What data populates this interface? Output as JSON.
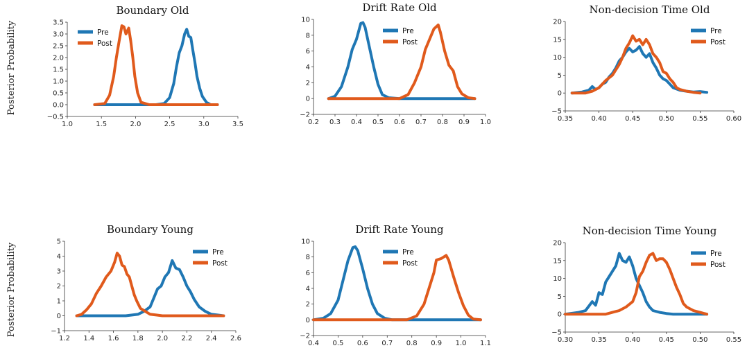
{
  "figure": {
    "ylabel": "Posterior Probability"
  },
  "colors": {
    "pre": "#1f77b4",
    "post": "#e05a1c"
  },
  "chart_data": [
    {
      "type": "line",
      "title": "Boundary Old",
      "xlabel": "",
      "ylabel": "Posterior Probability",
      "xlim": [
        1.0,
        3.5
      ],
      "ylim": [
        -0.5,
        3.5
      ],
      "xticks": [
        1.0,
        1.5,
        2.0,
        2.5,
        3.0,
        3.5
      ],
      "yticks": [
        -0.5,
        0.0,
        0.5,
        1.0,
        1.5,
        2.0,
        2.5,
        3.0,
        3.5
      ],
      "xtick_labels": [
        "1.0",
        "1.5",
        "2.0",
        "2.5",
        "3.0",
        "3.5"
      ],
      "ytick_labels": [
        "−0.5",
        "0.0",
        "0.5",
        "1.0",
        "1.5",
        "2.0",
        "2.5",
        "3.0",
        "3.5"
      ],
      "legend": "upper-left",
      "series": [
        {
          "name": "Pre",
          "color": "#1f77b4",
          "x": [
            1.4,
            2.3,
            2.42,
            2.5,
            2.56,
            2.6,
            2.64,
            2.68,
            2.72,
            2.75,
            2.78,
            2.81,
            2.84,
            2.87,
            2.9,
            2.94,
            2.98,
            3.04,
            3.1,
            3.2
          ],
          "y": [
            0,
            0,
            0.05,
            0.3,
            0.9,
            1.6,
            2.2,
            2.5,
            3.0,
            3.2,
            2.9,
            2.85,
            2.3,
            1.8,
            1.2,
            0.7,
            0.35,
            0.1,
            0,
            0
          ]
        },
        {
          "name": "Post",
          "color": "#e05a1c",
          "x": [
            1.4,
            1.55,
            1.62,
            1.68,
            1.72,
            1.76,
            1.8,
            1.83,
            1.86,
            1.9,
            1.93,
            1.96,
            1.99,
            2.03,
            2.08,
            2.2,
            3.2
          ],
          "y": [
            0,
            0.05,
            0.4,
            1.2,
            2.0,
            2.7,
            3.35,
            3.3,
            3.0,
            3.25,
            2.7,
            2.0,
            1.2,
            0.5,
            0.1,
            0,
            0
          ]
        }
      ]
    },
    {
      "type": "line",
      "title": "Drift Rate Old",
      "xlabel": "",
      "ylabel": "",
      "xlim": [
        0.2,
        1.0
      ],
      "ylim": [
        -2,
        10
      ],
      "xticks": [
        0.2,
        0.3,
        0.4,
        0.5,
        0.6,
        0.7,
        0.8,
        0.9,
        1.0
      ],
      "yticks": [
        -2,
        0,
        2,
        4,
        6,
        8,
        10
      ],
      "xtick_labels": [
        "0.2",
        "0.3",
        "0.4",
        "0.5",
        "0.6",
        "0.7",
        "0.8",
        "0.9",
        "1.0"
      ],
      "ytick_labels": [
        "−2",
        "0",
        "2",
        "4",
        "6",
        "8",
        "10"
      ],
      "legend": "upper-right",
      "series": [
        {
          "name": "Pre",
          "color": "#1f77b4",
          "x": [
            0.27,
            0.3,
            0.33,
            0.36,
            0.38,
            0.4,
            0.42,
            0.43,
            0.44,
            0.46,
            0.48,
            0.5,
            0.52,
            0.55,
            0.6,
            0.95
          ],
          "y": [
            0,
            0.3,
            1.5,
            4.0,
            6.2,
            7.5,
            9.5,
            9.6,
            9.0,
            6.5,
            4.0,
            1.8,
            0.5,
            0.1,
            0,
            0
          ]
        },
        {
          "name": "Post",
          "color": "#e05a1c",
          "x": [
            0.27,
            0.6,
            0.64,
            0.67,
            0.7,
            0.72,
            0.74,
            0.76,
            0.78,
            0.79,
            0.81,
            0.83,
            0.85,
            0.87,
            0.89,
            0.92,
            0.95
          ],
          "y": [
            0,
            0,
            0.5,
            2.0,
            4.0,
            6.2,
            7.5,
            8.8,
            9.3,
            8.4,
            6.0,
            4.2,
            3.5,
            1.5,
            0.6,
            0.1,
            0
          ]
        }
      ]
    },
    {
      "type": "line",
      "title": "Non-decision Time Old",
      "xlabel": "",
      "ylabel": "",
      "xlim": [
        0.35,
        0.6
      ],
      "ylim": [
        -5,
        20
      ],
      "xticks": [
        0.35,
        0.4,
        0.45,
        0.5,
        0.55,
        0.6
      ],
      "yticks": [
        -5,
        0,
        5,
        10,
        15,
        20
      ],
      "xtick_labels": [
        "0.35",
        "0.40",
        "0.45",
        "0.50",
        "0.55",
        "0.60"
      ],
      "ytick_labels": [
        "−5",
        "0",
        "5",
        "10",
        "15",
        "20"
      ],
      "legend": "upper-right",
      "series": [
        {
          "name": "Pre",
          "color": "#1f77b4",
          "x": [
            0.36,
            0.375,
            0.385,
            0.39,
            0.395,
            0.4,
            0.405,
            0.41,
            0.415,
            0.42,
            0.425,
            0.43,
            0.435,
            0.44,
            0.445,
            0.45,
            0.455,
            0.46,
            0.465,
            0.47,
            0.475,
            0.48,
            0.485,
            0.49,
            0.495,
            0.5,
            0.505,
            0.51,
            0.52,
            0.53,
            0.54,
            0.55,
            0.56
          ],
          "y": [
            0,
            0.3,
            0.8,
            1.8,
            1.0,
            1.5,
            2.5,
            3.0,
            4.5,
            5.5,
            7.0,
            9.0,
            10.0,
            11.5,
            12.5,
            11.5,
            12.0,
            13.0,
            11.0,
            10.0,
            11.0,
            8.5,
            7.0,
            5.0,
            4.0,
            3.5,
            2.5,
            1.5,
            0.8,
            0.5,
            0.3,
            0.4,
            0.2
          ]
        },
        {
          "name": "Post",
          "color": "#e05a1c",
          "x": [
            0.36,
            0.38,
            0.39,
            0.4,
            0.41,
            0.42,
            0.425,
            0.43,
            0.435,
            0.44,
            0.445,
            0.45,
            0.455,
            0.46,
            0.465,
            0.47,
            0.475,
            0.48,
            0.485,
            0.49,
            0.495,
            0.5,
            0.505,
            0.51,
            0.515,
            0.52,
            0.53,
            0.54,
            0.55
          ],
          "y": [
            0,
            0,
            0.5,
            1.5,
            3.5,
            5.0,
            6.5,
            8.0,
            10.0,
            12.5,
            14.0,
            16.0,
            14.5,
            15.0,
            13.5,
            15.0,
            13.5,
            11.0,
            10.0,
            8.5,
            6.0,
            5.5,
            4.0,
            3.0,
            1.5,
            1.0,
            0.5,
            0.2,
            0
          ]
        }
      ]
    },
    {
      "type": "line",
      "title": "Boundary Young",
      "xlabel": "",
      "ylabel": "Posterior Probability",
      "xlim": [
        1.2,
        2.6
      ],
      "ylim": [
        -1,
        5
      ],
      "xticks": [
        1.2,
        1.4,
        1.6,
        1.8,
        2.0,
        2.2,
        2.4,
        2.6
      ],
      "yticks": [
        -1,
        0,
        1,
        2,
        3,
        4,
        5
      ],
      "xtick_labels": [
        "1.2",
        "1.4",
        "1.6",
        "1.8",
        "2.0",
        "2.2",
        "2.4",
        "2.6"
      ],
      "ytick_labels": [
        "−1",
        "0",
        "1",
        "2",
        "3",
        "4",
        "5"
      ],
      "legend": "upper-right",
      "series": [
        {
          "name": "Pre",
          "color": "#1f77b4",
          "x": [
            1.3,
            1.7,
            1.8,
            1.85,
            1.9,
            1.93,
            1.96,
            1.99,
            2.02,
            2.05,
            2.08,
            2.11,
            2.14,
            2.17,
            2.2,
            2.23,
            2.26,
            2.3,
            2.35,
            2.4,
            2.45,
            2.5
          ],
          "y": [
            0,
            0,
            0.1,
            0.3,
            0.6,
            1.2,
            1.8,
            2.0,
            2.6,
            2.9,
            3.7,
            3.2,
            3.1,
            2.6,
            2.0,
            1.6,
            1.1,
            0.6,
            0.3,
            0.1,
            0.05,
            0
          ]
        },
        {
          "name": "Post",
          "color": "#e05a1c",
          "x": [
            1.3,
            1.34,
            1.38,
            1.42,
            1.46,
            1.5,
            1.54,
            1.58,
            1.61,
            1.63,
            1.65,
            1.67,
            1.69,
            1.71,
            1.73,
            1.75,
            1.77,
            1.79,
            1.82,
            1.86,
            1.9,
            1.95,
            2.0,
            2.5
          ],
          "y": [
            0,
            0.1,
            0.4,
            0.8,
            1.5,
            2.0,
            2.6,
            3.0,
            3.6,
            4.2,
            4.0,
            3.4,
            3.3,
            2.8,
            2.6,
            2.0,
            1.4,
            1.0,
            0.5,
            0.3,
            0.1,
            0.05,
            0,
            0
          ]
        }
      ]
    },
    {
      "type": "line",
      "title": "Drift Rate Young",
      "xlabel": "",
      "ylabel": "",
      "xlim": [
        0.4,
        1.1
      ],
      "ylim": [
        -2,
        10
      ],
      "xticks": [
        0.4,
        0.5,
        0.6,
        0.7,
        0.8,
        0.9,
        1.0,
        1.1
      ],
      "yticks": [
        -2,
        0,
        2,
        4,
        6,
        8,
        10
      ],
      "xtick_labels": [
        "0.4",
        "0.5",
        "0.6",
        "0.7",
        "0.8",
        "0.9",
        "1.0",
        "1.1"
      ],
      "ytick_labels": [
        "−2",
        "0",
        "2",
        "4",
        "6",
        "8",
        "10"
      ],
      "legend": "upper-right",
      "series": [
        {
          "name": "Pre",
          "color": "#1f77b4",
          "x": [
            0.4,
            0.44,
            0.47,
            0.5,
            0.52,
            0.54,
            0.56,
            0.57,
            0.58,
            0.6,
            0.62,
            0.64,
            0.66,
            0.69,
            0.72,
            1.08
          ],
          "y": [
            0,
            0.2,
            0.8,
            2.5,
            5.0,
            7.5,
            9.2,
            9.3,
            8.8,
            6.5,
            4.0,
            2.0,
            0.8,
            0.2,
            0,
            0
          ]
        },
        {
          "name": "Post",
          "color": "#e05a1c",
          "x": [
            0.4,
            0.78,
            0.82,
            0.85,
            0.87,
            0.89,
            0.9,
            0.92,
            0.94,
            0.95,
            0.97,
            0.99,
            1.01,
            1.03,
            1.05,
            1.08
          ],
          "y": [
            0,
            0,
            0.5,
            2.0,
            4.0,
            6.0,
            7.6,
            7.8,
            8.2,
            7.6,
            5.5,
            3.5,
            1.8,
            0.6,
            0.1,
            0
          ]
        }
      ]
    },
    {
      "type": "line",
      "title": "Non-decision Time Young",
      "xlabel": "",
      "ylabel": "",
      "xlim": [
        0.3,
        0.55
      ],
      "ylim": [
        -5,
        20
      ],
      "xticks": [
        0.3,
        0.35,
        0.4,
        0.45,
        0.5,
        0.55
      ],
      "yticks": [
        -5,
        0,
        5,
        10,
        15,
        20
      ],
      "xtick_labels": [
        "0.30",
        "0.35",
        "0.40",
        "0.45",
        "0.50",
        "0.55"
      ],
      "ytick_labels": [
        "−5",
        "0",
        "5",
        "10",
        "15",
        "20"
      ],
      "legend": "upper-right",
      "series": [
        {
          "name": "Pre",
          "color": "#1f77b4",
          "x": [
            0.3,
            0.32,
            0.33,
            0.34,
            0.345,
            0.35,
            0.355,
            0.36,
            0.365,
            0.37,
            0.375,
            0.38,
            0.385,
            0.39,
            0.395,
            0.4,
            0.405,
            0.41,
            0.415,
            0.42,
            0.425,
            0.43,
            0.44,
            0.45,
            0.46,
            0.47,
            0.49,
            0.51
          ],
          "y": [
            0,
            0.5,
            1.0,
            3.5,
            2.5,
            6.0,
            5.5,
            9.0,
            10.5,
            12.0,
            13.5,
            17.0,
            15.0,
            14.5,
            16.0,
            13.5,
            10.0,
            8.0,
            6.0,
            3.5,
            2.0,
            1.0,
            0.5,
            0.2,
            0,
            0,
            0,
            0
          ]
        },
        {
          "name": "Post",
          "color": "#e05a1c",
          "x": [
            0.3,
            0.36,
            0.37,
            0.38,
            0.39,
            0.4,
            0.405,
            0.41,
            0.415,
            0.42,
            0.425,
            0.43,
            0.435,
            0.44,
            0.445,
            0.45,
            0.455,
            0.46,
            0.465,
            0.47,
            0.475,
            0.48,
            0.49,
            0.5,
            0.51
          ],
          "y": [
            0,
            0,
            0.5,
            1.0,
            2.0,
            3.5,
            6.0,
            10.5,
            12.0,
            14.5,
            16.5,
            17.0,
            15.0,
            15.5,
            15.5,
            14.5,
            12.5,
            10.0,
            7.5,
            5.5,
            3.0,
            2.0,
            1.0,
            0.5,
            0
          ]
        }
      ]
    }
  ]
}
